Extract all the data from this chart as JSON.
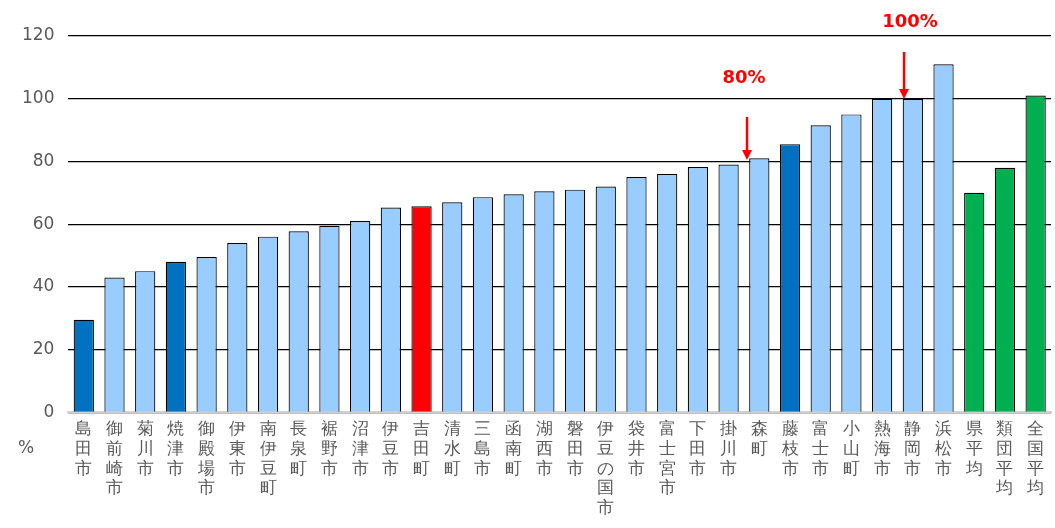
{
  "chart_data": {
    "type": "bar",
    "ylabel": "%",
    "categories": [
      "島田市",
      "御前崎市",
      "菊川市",
      "焼津市",
      "御殿場市",
      "伊東市",
      "南伊豆町",
      "長泉町",
      "裾野市",
      "沼津市",
      "伊豆市",
      "吉田町",
      "清水町",
      "三島市",
      "函南町",
      "湖西市",
      "磐田市",
      "伊豆の国市",
      "袋井市",
      "富士宮市",
      "下田市",
      "掛川市",
      "森町",
      "藤枝市",
      "富士市",
      "小山町",
      "熱海市",
      "静岡市",
      "浜松市",
      "県平均",
      "類団平均",
      "全国平均"
    ],
    "values": [
      29.5,
      43,
      45,
      48,
      49.5,
      54,
      56,
      57.7,
      59.5,
      61,
      65.3,
      65.7,
      67,
      68.6,
      69.5,
      70.5,
      71,
      72,
      75,
      76,
      78.2,
      79,
      81,
      85.5,
      91.5,
      95,
      100,
      100,
      111,
      70,
      78,
      101
    ],
    "colors": [
      "#0070c0",
      "#99ccff",
      "#99ccff",
      "#0070c0",
      "#99ccff",
      "#99ccff",
      "#99ccff",
      "#99ccff",
      "#99ccff",
      "#99ccff",
      "#99ccff",
      "#ff0000",
      "#99ccff",
      "#99ccff",
      "#99ccff",
      "#99ccff",
      "#99ccff",
      "#99ccff",
      "#99ccff",
      "#99ccff",
      "#99ccff",
      "#99ccff",
      "#99ccff",
      "#0070c0",
      "#99ccff",
      "#99ccff",
      "#99ccff",
      "#99ccff",
      "#99ccff",
      "#00b050",
      "#00b050",
      "#00b050"
    ],
    "ylim": [
      0,
      120
    ],
    "yticks": [
      0,
      20,
      40,
      60,
      80,
      100,
      120
    ],
    "grid": "y",
    "legend": false,
    "annotations": [
      "80%",
      "100%"
    ]
  }
}
